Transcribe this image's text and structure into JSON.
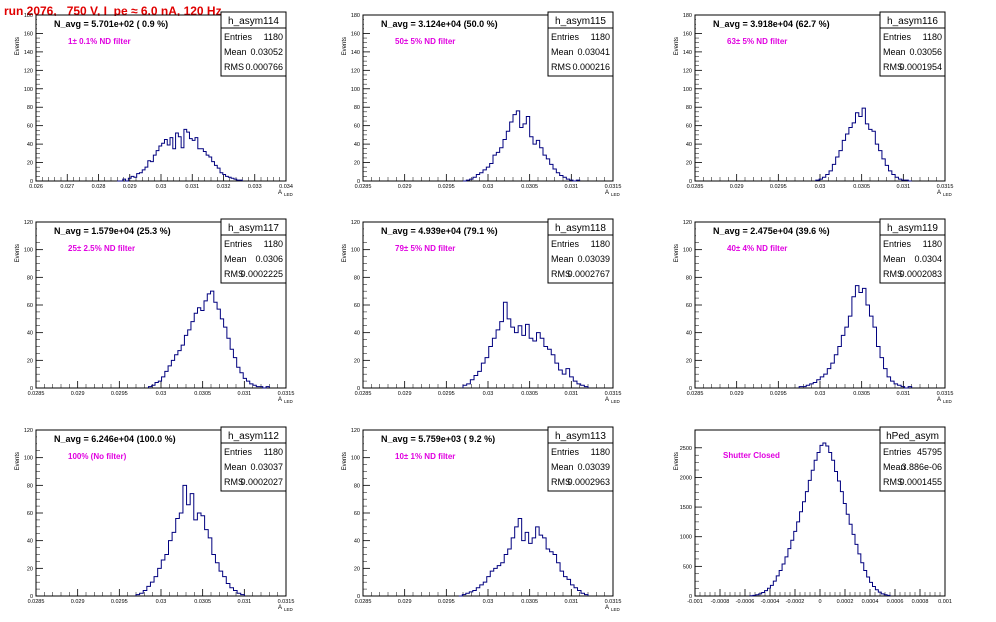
{
  "page_title": "run 2076,   750 V, I_pe ≈ 6.0 nA, 120 Hz",
  "colors": {
    "hist": "#00007f",
    "annotation": "#e000e0",
    "title": "#e00000",
    "frame": "#000000"
  },
  "chart_data": [
    {
      "type": "bar",
      "name": "h_asym114",
      "title": "N_avg = 5.701e+02 ( 0.9 %)",
      "annotation": "1± 0.1% ND filter",
      "ylabel": "Events",
      "xlabel": "A_LED",
      "xlim": [
        0.026,
        0.034
      ],
      "ylim": [
        0,
        180
      ],
      "xticks": [
        "0.026",
        "0.027",
        "0.028",
        "0.029",
        "0.03",
        "0.031",
        "0.032",
        "0.033",
        "0.034"
      ],
      "yticks": [
        "0",
        "20",
        "40",
        "60",
        "80",
        "100",
        "120",
        "140",
        "160",
        "180"
      ],
      "stats": {
        "entries": "1180",
        "mean": "0.03052",
        "rms": "0.000766"
      },
      "stat_labels": [
        "Entries",
        "Mean",
        "RMS"
      ],
      "bin_range": [
        0.0286,
        0.0326
      ],
      "values": [
        0,
        0,
        2,
        0,
        3,
        5,
        4,
        8,
        9,
        12,
        15,
        22,
        21,
        28,
        33,
        38,
        41,
        45,
        39,
        47,
        35,
        52,
        48,
        36,
        56,
        53,
        46,
        44,
        47,
        35,
        35,
        32,
        28,
        26,
        21,
        17,
        14,
        9,
        7,
        5,
        4,
        3,
        2,
        1,
        1
      ]
    },
    {
      "type": "bar",
      "name": "h_asym115",
      "title": "N_avg = 3.124e+04 (50.0 %)",
      "annotation": "50± 5% ND filter",
      "ylabel": "Events",
      "xlabel": "A_LED",
      "xlim": [
        0.0285,
        0.0315
      ],
      "ylim": [
        0,
        180
      ],
      "xticks": [
        "0.0285",
        "0.029",
        "0.0295",
        "0.03",
        "0.0305",
        "0.031",
        "0.0315"
      ],
      "yticks": [
        "0",
        "20",
        "40",
        "60",
        "80",
        "100",
        "120",
        "140",
        "160",
        "180"
      ],
      "stats": {
        "entries": "1180",
        "mean": "0.03041",
        "rms": "0.000216"
      },
      "stat_labels": [
        "Entries",
        "Mean",
        "RMS"
      ],
      "bin_range": [
        0.0297,
        0.0311
      ],
      "values": [
        0,
        1,
        2,
        4,
        7,
        9,
        12,
        15,
        19,
        28,
        31,
        36,
        45,
        54,
        64,
        72,
        76,
        58,
        62,
        70,
        48,
        40,
        44,
        36,
        28,
        24,
        18,
        13,
        9,
        6,
        4,
        2,
        1,
        0,
        1
      ]
    },
    {
      "type": "bar",
      "name": "h_asym116",
      "title": "N_avg = 3.918e+04 (62.7 %)",
      "annotation": "63± 5% ND filter",
      "ylabel": "Events",
      "xlabel": "A_LED",
      "xlim": [
        0.0285,
        0.0315
      ],
      "ylim": [
        0,
        180
      ],
      "xticks": [
        "0.0285",
        "0.029",
        "0.0295",
        "0.03",
        "0.0305",
        "0.031",
        "0.0315"
      ],
      "yticks": [
        "0",
        "20",
        "40",
        "60",
        "80",
        "100",
        "120",
        "140",
        "160",
        "180"
      ],
      "stats": {
        "entries": "1180",
        "mean": "0.03056",
        "rms": "0.0001954"
      },
      "stat_labels": [
        "Entries",
        "Mean",
        "RMS"
      ],
      "bin_range": [
        0.02995,
        0.0311
      ],
      "values": [
        1,
        2,
        4,
        7,
        11,
        18,
        26,
        33,
        44,
        51,
        58,
        63,
        74,
        70,
        79,
        62,
        56,
        54,
        40,
        33,
        24,
        17,
        11,
        7,
        4,
        2,
        1,
        1,
        0
      ]
    },
    {
      "type": "bar",
      "name": "h_asym117",
      "title": "N_avg = 1.579e+04 (25.3 %)",
      "annotation": "25± 2.5% ND filter",
      "ylabel": "Events",
      "xlabel": "A_LED",
      "xlim": [
        0.0285,
        0.0315
      ],
      "ylim": [
        0,
        120
      ],
      "xticks": [
        "0.0285",
        "0.029",
        "0.0295",
        "0.03",
        "0.0305",
        "0.031",
        "0.0315"
      ],
      "yticks": [
        "0",
        "20",
        "40",
        "60",
        "80",
        "100",
        "120"
      ],
      "stats": {
        "entries": "1180",
        "mean": "0.0306",
        "rms": "0.0002225"
      },
      "stat_labels": [
        "Entries",
        "Mean",
        "RMS"
      ],
      "bin_range": [
        0.02985,
        0.0313
      ],
      "values": [
        1,
        2,
        4,
        5,
        8,
        12,
        16,
        20,
        24,
        27,
        31,
        38,
        42,
        48,
        54,
        58,
        56,
        63,
        68,
        70,
        62,
        57,
        50,
        44,
        36,
        28,
        22,
        15,
        11,
        7,
        5,
        3,
        2,
        1,
        1,
        0,
        1
      ]
    },
    {
      "type": "bar",
      "name": "h_asym118",
      "title": "N_avg = 4.939e+04 (79.1 %)",
      "annotation": "79± 5% ND filter",
      "ylabel": "Events",
      "xlabel": "A_LED",
      "xlim": [
        0.0285,
        0.0315
      ],
      "ylim": [
        0,
        120
      ],
      "xticks": [
        "0.0285",
        "0.029",
        "0.0295",
        "0.03",
        "0.0305",
        "0.031",
        "0.0315"
      ],
      "yticks": [
        "0",
        "20",
        "40",
        "60",
        "80",
        "100",
        "120"
      ],
      "stats": {
        "entries": "1180",
        "mean": "0.03039",
        "rms": "0.0002767"
      },
      "stat_labels": [
        "Entries",
        "Mean",
        "RMS"
      ],
      "bin_range": [
        0.0297,
        0.0312
      ],
      "values": [
        2,
        3,
        6,
        9,
        12,
        18,
        22,
        30,
        36,
        42,
        48,
        62,
        50,
        44,
        40,
        45,
        38,
        46,
        36,
        34,
        40,
        36,
        30,
        28,
        24,
        18,
        13,
        10,
        14,
        8,
        5,
        3,
        2,
        1
      ]
    },
    {
      "type": "bar",
      "name": "h_asym119",
      "title": "N_avg = 2.475e+04 (39.6 %)",
      "annotation": "40± 4% ND filter",
      "ylabel": "Events",
      "xlabel": "A_LED",
      "xlim": [
        0.0285,
        0.0315
      ],
      "ylim": [
        0,
        120
      ],
      "xticks": [
        "0.0285",
        "0.029",
        "0.0295",
        "0.03",
        "0.0305",
        "0.031",
        "0.0315"
      ],
      "yticks": [
        "0",
        "20",
        "40",
        "60",
        "80",
        "100",
        "120"
      ],
      "stats": {
        "entries": "1180",
        "mean": "0.0304",
        "rms": "0.0002083"
      },
      "stat_labels": [
        "Entries",
        "Mean",
        "RMS"
      ],
      "bin_range": [
        0.02975,
        0.0311
      ],
      "values": [
        1,
        1,
        2,
        3,
        4,
        6,
        8,
        10,
        14,
        18,
        24,
        30,
        38,
        44,
        52,
        66,
        74,
        69,
        72,
        60,
        52,
        44,
        30,
        22,
        14,
        8,
        5,
        3,
        2,
        1,
        0,
        1
      ]
    },
    {
      "type": "bar",
      "name": "h_asym112",
      "title": "N_avg = 6.246e+04 (100.0 %)",
      "annotation": "100% (No filter)",
      "ylabel": "Events",
      "xlabel": "A_LED",
      "xlim": [
        0.0285,
        0.0315
      ],
      "ylim": [
        0,
        120
      ],
      "xticks": [
        "0.0285",
        "0.029",
        "0.0295",
        "0.03",
        "0.0305",
        "0.031",
        "0.0315"
      ],
      "yticks": [
        "0",
        "20",
        "40",
        "60",
        "80",
        "100",
        "120"
      ],
      "stats": {
        "entries": "1180",
        "mean": "0.03037",
        "rms": "0.0002027"
      },
      "stat_labels": [
        "Entries",
        "Mean",
        "RMS"
      ],
      "bin_range": [
        0.0297,
        0.031
      ],
      "values": [
        1,
        2,
        4,
        7,
        10,
        14,
        20,
        26,
        30,
        40,
        46,
        56,
        60,
        80,
        66,
        74,
        55,
        60,
        58,
        48,
        42,
        30,
        24,
        18,
        14,
        9,
        6,
        4,
        2,
        1
      ]
    },
    {
      "type": "bar",
      "name": "h_asym113",
      "title": "N_avg = 5.759e+03 ( 9.2 %)",
      "annotation": "10± 1% ND filter",
      "ylabel": "Events",
      "xlabel": "A_LED",
      "xlim": [
        0.0285,
        0.0315
      ],
      "ylim": [
        0,
        120
      ],
      "xticks": [
        "0.0285",
        "0.029",
        "0.0295",
        "0.03",
        "0.0305",
        "0.031",
        "0.0315"
      ],
      "yticks": [
        "0",
        "20",
        "40",
        "60",
        "80",
        "100",
        "120"
      ],
      "stats": {
        "entries": "1180",
        "mean": "0.03039",
        "rms": "0.0002963"
      },
      "stat_labels": [
        "Entries",
        "Mean",
        "RMS"
      ],
      "bin_range": [
        0.02965,
        0.0312
      ],
      "values": [
        0,
        1,
        2,
        3,
        4,
        6,
        8,
        10,
        14,
        18,
        20,
        22,
        24,
        30,
        34,
        42,
        50,
        56,
        40,
        46,
        38,
        42,
        50,
        44,
        42,
        34,
        32,
        30,
        24,
        18,
        14,
        12,
        8,
        6,
        4,
        2,
        1
      ]
    },
    {
      "type": "bar",
      "name": "hPed_asym",
      "title": "",
      "annotation": "Shutter Closed",
      "ylabel": "Events",
      "xlabel": "",
      "xlim": [
        -0.001,
        0.001
      ],
      "ylim": [
        0,
        2800
      ],
      "xticks": [
        "-0.001",
        "-0.0008",
        "-0.0006",
        "-0.0004",
        "-0.0002",
        "0",
        "0.0002",
        "0.0004",
        "0.0006",
        "0.0008",
        "0.001"
      ],
      "yticks": [
        "0",
        "500",
        "1000",
        "1500",
        "2000",
        "2500"
      ],
      "stats": {
        "entries": "45795",
        "mean": "3.886e-06",
        "rms": "0.0001455"
      },
      "stat_labels": [
        "Entries",
        "Mean",
        "RMS"
      ],
      "bin_range": [
        -0.00056,
        0.00056
      ],
      "values": [
        5,
        10,
        20,
        35,
        60,
        90,
        130,
        180,
        250,
        340,
        430,
        540,
        660,
        800,
        940,
        1090,
        1250,
        1420,
        1590,
        1760,
        1950,
        2120,
        2290,
        2420,
        2540,
        2580,
        2530,
        2420,
        2290,
        2100,
        1940,
        1760,
        1560,
        1380,
        1210,
        1040,
        870,
        710,
        560,
        430,
        320,
        230,
        160,
        105,
        65,
        35,
        20,
        10
      ]
    }
  ]
}
